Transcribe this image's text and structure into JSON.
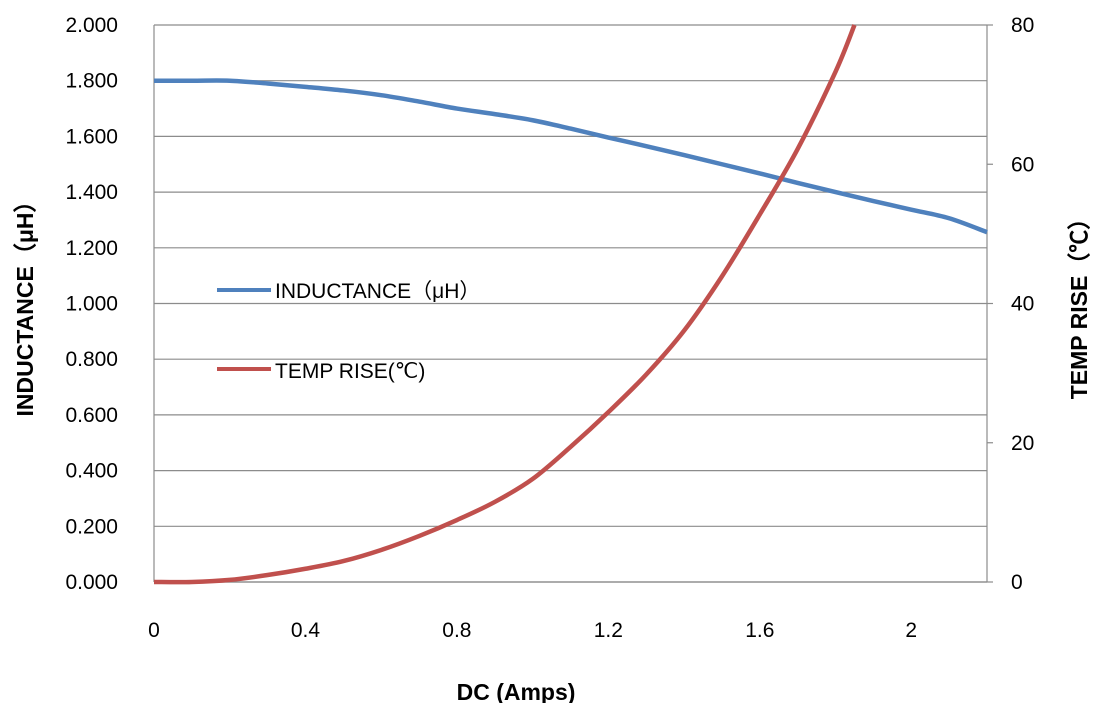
{
  "chart_data": {
    "type": "line",
    "xlabel": "DC (Amps)",
    "ylabel_left": "INDUCTANCE（μH）",
    "ylabel_right": "TEMP RISE（℃）",
    "xlim": [
      0,
      2.2
    ],
    "ylim_left": [
      0,
      2.0
    ],
    "ylim_right": [
      0,
      80
    ],
    "x_ticks": [
      "0",
      "0.4",
      "0.8",
      "1.2",
      "1.6",
      "2"
    ],
    "x_tick_values": [
      0,
      0.4,
      0.8,
      1.2,
      1.6,
      2.0
    ],
    "y_left_ticks": [
      "0.000",
      "0.200",
      "0.400",
      "0.600",
      "0.800",
      "1.000",
      "1.200",
      "1.400",
      "1.600",
      "1.800",
      "2.000"
    ],
    "y_left_tick_values": [
      0,
      0.2,
      0.4,
      0.6,
      0.8,
      1.0,
      1.2,
      1.4,
      1.6,
      1.8,
      2.0
    ],
    "y_right_ticks": [
      "0",
      "20",
      "40",
      "60",
      "80"
    ],
    "y_right_tick_values": [
      0,
      20,
      40,
      60,
      80
    ],
    "grid": true,
    "legend_placement": "center-left",
    "series": [
      {
        "name": "INDUCTANCE（μH）",
        "axis": "left",
        "color": "#4f81bd",
        "x": [
          0,
          0.1,
          0.2,
          0.3,
          0.4,
          0.5,
          0.6,
          0.7,
          0.8,
          0.9,
          1.0,
          1.1,
          1.2,
          1.3,
          1.4,
          1.5,
          1.6,
          1.7,
          1.8,
          1.9,
          2.0,
          2.1,
          2.2
        ],
        "values": [
          1.8,
          1.8,
          1.8,
          1.79,
          1.778,
          1.765,
          1.748,
          1.725,
          1.7,
          1.68,
          1.658,
          1.628,
          1.596,
          1.565,
          1.533,
          1.5,
          1.467,
          1.433,
          1.4,
          1.368,
          1.337,
          1.306,
          1.256
        ]
      },
      {
        "name": "TEMP RISE(℃)",
        "axis": "right",
        "color": "#c0504d",
        "x": [
          0,
          0.1,
          0.2,
          0.3,
          0.4,
          0.5,
          0.6,
          0.7,
          0.8,
          0.9,
          1.0,
          1.1,
          1.2,
          1.3,
          1.4,
          1.5,
          1.6,
          1.7,
          1.8,
          1.85
        ],
        "values": [
          0,
          0,
          0.3,
          1.0,
          1.9,
          3.0,
          4.6,
          6.6,
          8.9,
          11.5,
          14.8,
          19.4,
          24.4,
          29.8,
          36.1,
          43.9,
          52.8,
          62.2,
          73.3,
          80
        ]
      }
    ]
  }
}
